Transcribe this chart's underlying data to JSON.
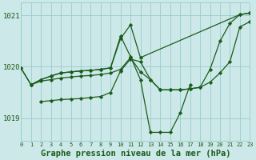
{
  "background_color": "#cce8e8",
  "grid_color": "#99cccc",
  "line_color": "#1a5c1a",
  "marker_color": "#1a5c1a",
  "xlabel": "Graphe pression niveau de la mer (hPa)",
  "xlabel_fontsize": 7.5,
  "ytick_labels": [
    "1019",
    "1020",
    "1021"
  ],
  "ytick_vals": [
    1019,
    1020,
    1021
  ],
  "xlim": [
    0,
    23
  ],
  "ylim": [
    1018.55,
    1021.25
  ],
  "figsize": [
    3.2,
    2.0
  ],
  "dpi": 100,
  "series": [
    {
      "x": [
        0,
        1,
        2,
        3,
        4,
        5,
        6,
        7,
        8,
        9,
        10,
        11,
        12,
        22,
        23
      ],
      "y": [
        1019.97,
        1019.65,
        1019.75,
        1019.82,
        1019.88,
        1019.9,
        1019.92,
        1019.93,
        1019.95,
        1019.98,
        1020.55,
        1020.82,
        1020.18,
        1021.02,
        1021.05
      ]
    },
    {
      "x": [
        2,
        3,
        4,
        5,
        6,
        7,
        8,
        9,
        10,
        11,
        12,
        13,
        14,
        15,
        16,
        17,
        18,
        19,
        20,
        21,
        22,
        23
      ],
      "y": [
        1019.32,
        1019.34,
        1019.36,
        1019.37,
        1019.38,
        1019.4,
        1019.42,
        1019.5,
        1019.92,
        1020.15,
        1020.1,
        1019.75,
        1019.55,
        1019.55,
        1019.55,
        1019.57,
        1019.6,
        1019.7,
        1019.88,
        1020.1,
        1020.78,
        1020.88
      ]
    },
    {
      "x": [
        1,
        2,
        3,
        4,
        5,
        6,
        7,
        8,
        9,
        10,
        11,
        12,
        13,
        14,
        15,
        16,
        17,
        18,
        19,
        20,
        21,
        22,
        23
      ],
      "y": [
        1019.65,
        1019.72,
        1019.75,
        1019.78,
        1019.8,
        1019.82,
        1019.83,
        1019.85,
        1019.88,
        1019.95,
        1020.18,
        1019.9,
        1019.75,
        1019.55,
        1019.55,
        1019.55,
        1019.57,
        1019.6,
        1019.95,
        1020.5,
        1020.85,
        1021.02,
        1021.05
      ]
    },
    {
      "x": [
        0,
        1,
        2,
        3,
        4,
        5,
        6,
        7,
        8,
        9,
        10,
        11,
        12,
        13,
        14,
        15,
        16,
        17
      ],
      "y": [
        1019.97,
        1019.65,
        1019.75,
        1019.82,
        1019.88,
        1019.9,
        1019.92,
        1019.93,
        1019.95,
        1019.98,
        1020.6,
        1020.2,
        1019.75,
        1018.72,
        1018.72,
        1018.72,
        1019.1,
        1019.65
      ]
    }
  ]
}
